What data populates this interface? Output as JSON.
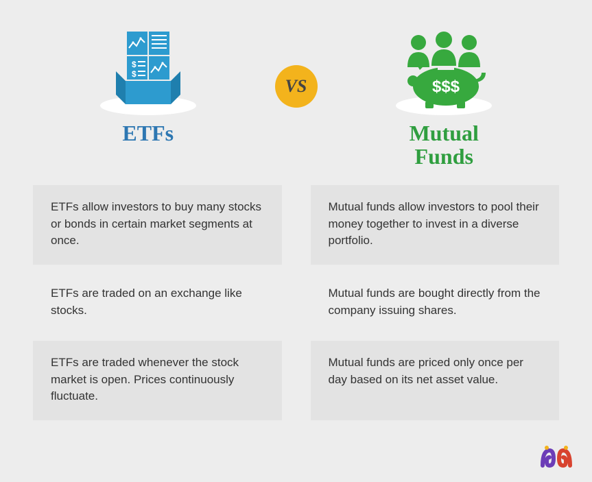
{
  "type": "infographic",
  "background_color": "#ededed",
  "vs": {
    "label": "VS",
    "bg_color": "#f3b31c",
    "text_color": "#444444",
    "fontsize": 26
  },
  "left": {
    "title": "ETFs",
    "title_color": "#2d77b2",
    "icon_color": "#2d9bcf",
    "shadow_color": "#ffffff"
  },
  "right": {
    "title": "Mutual\nFunds",
    "title_color": "#2f9e3f",
    "icon_color": "#37a93e",
    "shadow_color": "#ffffff"
  },
  "rows": [
    {
      "left": "ETFs allow investors to buy many stocks or bonds in certain market segments at once.",
      "right": "Mutual funds allow investors to pool their money together to invest in a diverse portfolio.",
      "bg": "#e3e3e3"
    },
    {
      "left": "ETFs are traded on an exchange like stocks.",
      "right": "Mutual funds are bought directly from the company issuing shares.",
      "bg": "#ededed"
    },
    {
      "left": "ETFs are traded whenever the stock market is open. Prices continuously fluctuate.",
      "right": "Mutual funds are priced only once per day based on its net asset value.",
      "bg": "#e3e3e3"
    }
  ],
  "text_color": "#333333",
  "body_fontsize": 17,
  "heading_fontsize": 32,
  "logo_colors": {
    "left": "#6c3db7",
    "right": "#d8432f"
  }
}
